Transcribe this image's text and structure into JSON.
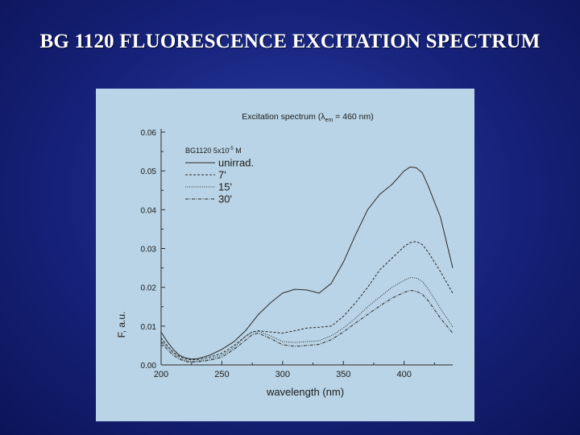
{
  "slide": {
    "title": "BG 1120 FLUORESCENCE EXCITATION SPECTRUM"
  },
  "colors": {
    "background": "#16227a",
    "title_text": "#ffffff",
    "chart_panel": "#b9d4e6",
    "chart_lines": "#2a2a2a"
  },
  "chart_data": {
    "type": "line",
    "title": "Excitation spectrum (λem = 460 nm)",
    "title_parts": {
      "prefix": "Excitation spectrum (λ",
      "subscript": "em",
      "suffix": " = 460 nm)"
    },
    "xlabel": "wavelength (nm)",
    "ylabel": "F, a.u.",
    "xlim": [
      200,
      440
    ],
    "ylim": [
      0.0,
      0.06
    ],
    "xticks": [
      "200",
      "250",
      "300",
      "350",
      "400"
    ],
    "yticks": [
      "0.00",
      "0.01",
      "0.02",
      "0.03",
      "0.04",
      "0.05",
      "0.06"
    ],
    "grid": false,
    "legend": {
      "position": "top-left",
      "header": "BG1120  5x10⁻⁵ M",
      "header_parts": {
        "prefix": "BG1120  5x10",
        "superscript": "-5",
        "suffix": " M"
      }
    },
    "series": [
      {
        "name": "unirrad.",
        "style": "solid",
        "x": [
          200,
          205,
          210,
          215,
          220,
          225,
          230,
          240,
          250,
          260,
          270,
          280,
          290,
          300,
          310,
          320,
          330,
          340,
          350,
          360,
          370,
          380,
          390,
          400,
          405,
          410,
          415,
          420,
          430,
          440
        ],
        "y": [
          0.0085,
          0.006,
          0.004,
          0.0025,
          0.0018,
          0.0015,
          0.0016,
          0.0025,
          0.004,
          0.006,
          0.009,
          0.013,
          0.016,
          0.0185,
          0.0195,
          0.0193,
          0.0185,
          0.021,
          0.0265,
          0.0335,
          0.04,
          0.044,
          0.0465,
          0.05,
          0.051,
          0.0508,
          0.0495,
          0.046,
          0.038,
          0.025
        ]
      },
      {
        "name": "7'",
        "style": "dashed",
        "x": [
          200,
          205,
          210,
          215,
          220,
          225,
          230,
          240,
          250,
          260,
          270,
          275,
          280,
          290,
          300,
          310,
          320,
          330,
          340,
          350,
          360,
          370,
          380,
          390,
          400,
          405,
          410,
          415,
          420,
          430,
          440
        ],
        "y": [
          0.007,
          0.005,
          0.0033,
          0.0022,
          0.0015,
          0.0013,
          0.0014,
          0.002,
          0.003,
          0.005,
          0.0075,
          0.0085,
          0.0088,
          0.0085,
          0.0082,
          0.0088,
          0.0095,
          0.0097,
          0.01,
          0.0125,
          0.016,
          0.02,
          0.0245,
          0.0275,
          0.0305,
          0.0315,
          0.0318,
          0.031,
          0.029,
          0.024,
          0.0185
        ]
      },
      {
        "name": "15'",
        "style": "dotted",
        "x": [
          200,
          205,
          210,
          215,
          220,
          225,
          230,
          240,
          250,
          260,
          270,
          275,
          280,
          290,
          300,
          310,
          320,
          330,
          340,
          350,
          360,
          370,
          380,
          390,
          400,
          405,
          410,
          415,
          420,
          430,
          440
        ],
        "y": [
          0.0065,
          0.0046,
          0.003,
          0.0018,
          0.0011,
          0.0009,
          0.001,
          0.0015,
          0.0025,
          0.0045,
          0.0075,
          0.0085,
          0.0087,
          0.0075,
          0.006,
          0.0058,
          0.006,
          0.0062,
          0.0075,
          0.0095,
          0.012,
          0.015,
          0.0175,
          0.02,
          0.0218,
          0.0225,
          0.0224,
          0.0215,
          0.0195,
          0.0145,
          0.0098
        ]
      },
      {
        "name": "30'",
        "style": "dashdot",
        "x": [
          200,
          205,
          210,
          215,
          220,
          225,
          230,
          240,
          250,
          260,
          270,
          275,
          280,
          290,
          300,
          310,
          320,
          330,
          340,
          350,
          360,
          370,
          380,
          390,
          400,
          405,
          410,
          415,
          420,
          430,
          440
        ],
        "y": [
          0.006,
          0.004,
          0.0025,
          0.0015,
          0.0009,
          0.0007,
          0.0008,
          0.0012,
          0.002,
          0.004,
          0.0065,
          0.0078,
          0.0082,
          0.0068,
          0.0052,
          0.0048,
          0.005,
          0.0053,
          0.0065,
          0.0085,
          0.0108,
          0.013,
          0.0152,
          0.0172,
          0.0187,
          0.0192,
          0.019,
          0.0182,
          0.0165,
          0.012,
          0.0082
        ]
      }
    ]
  }
}
